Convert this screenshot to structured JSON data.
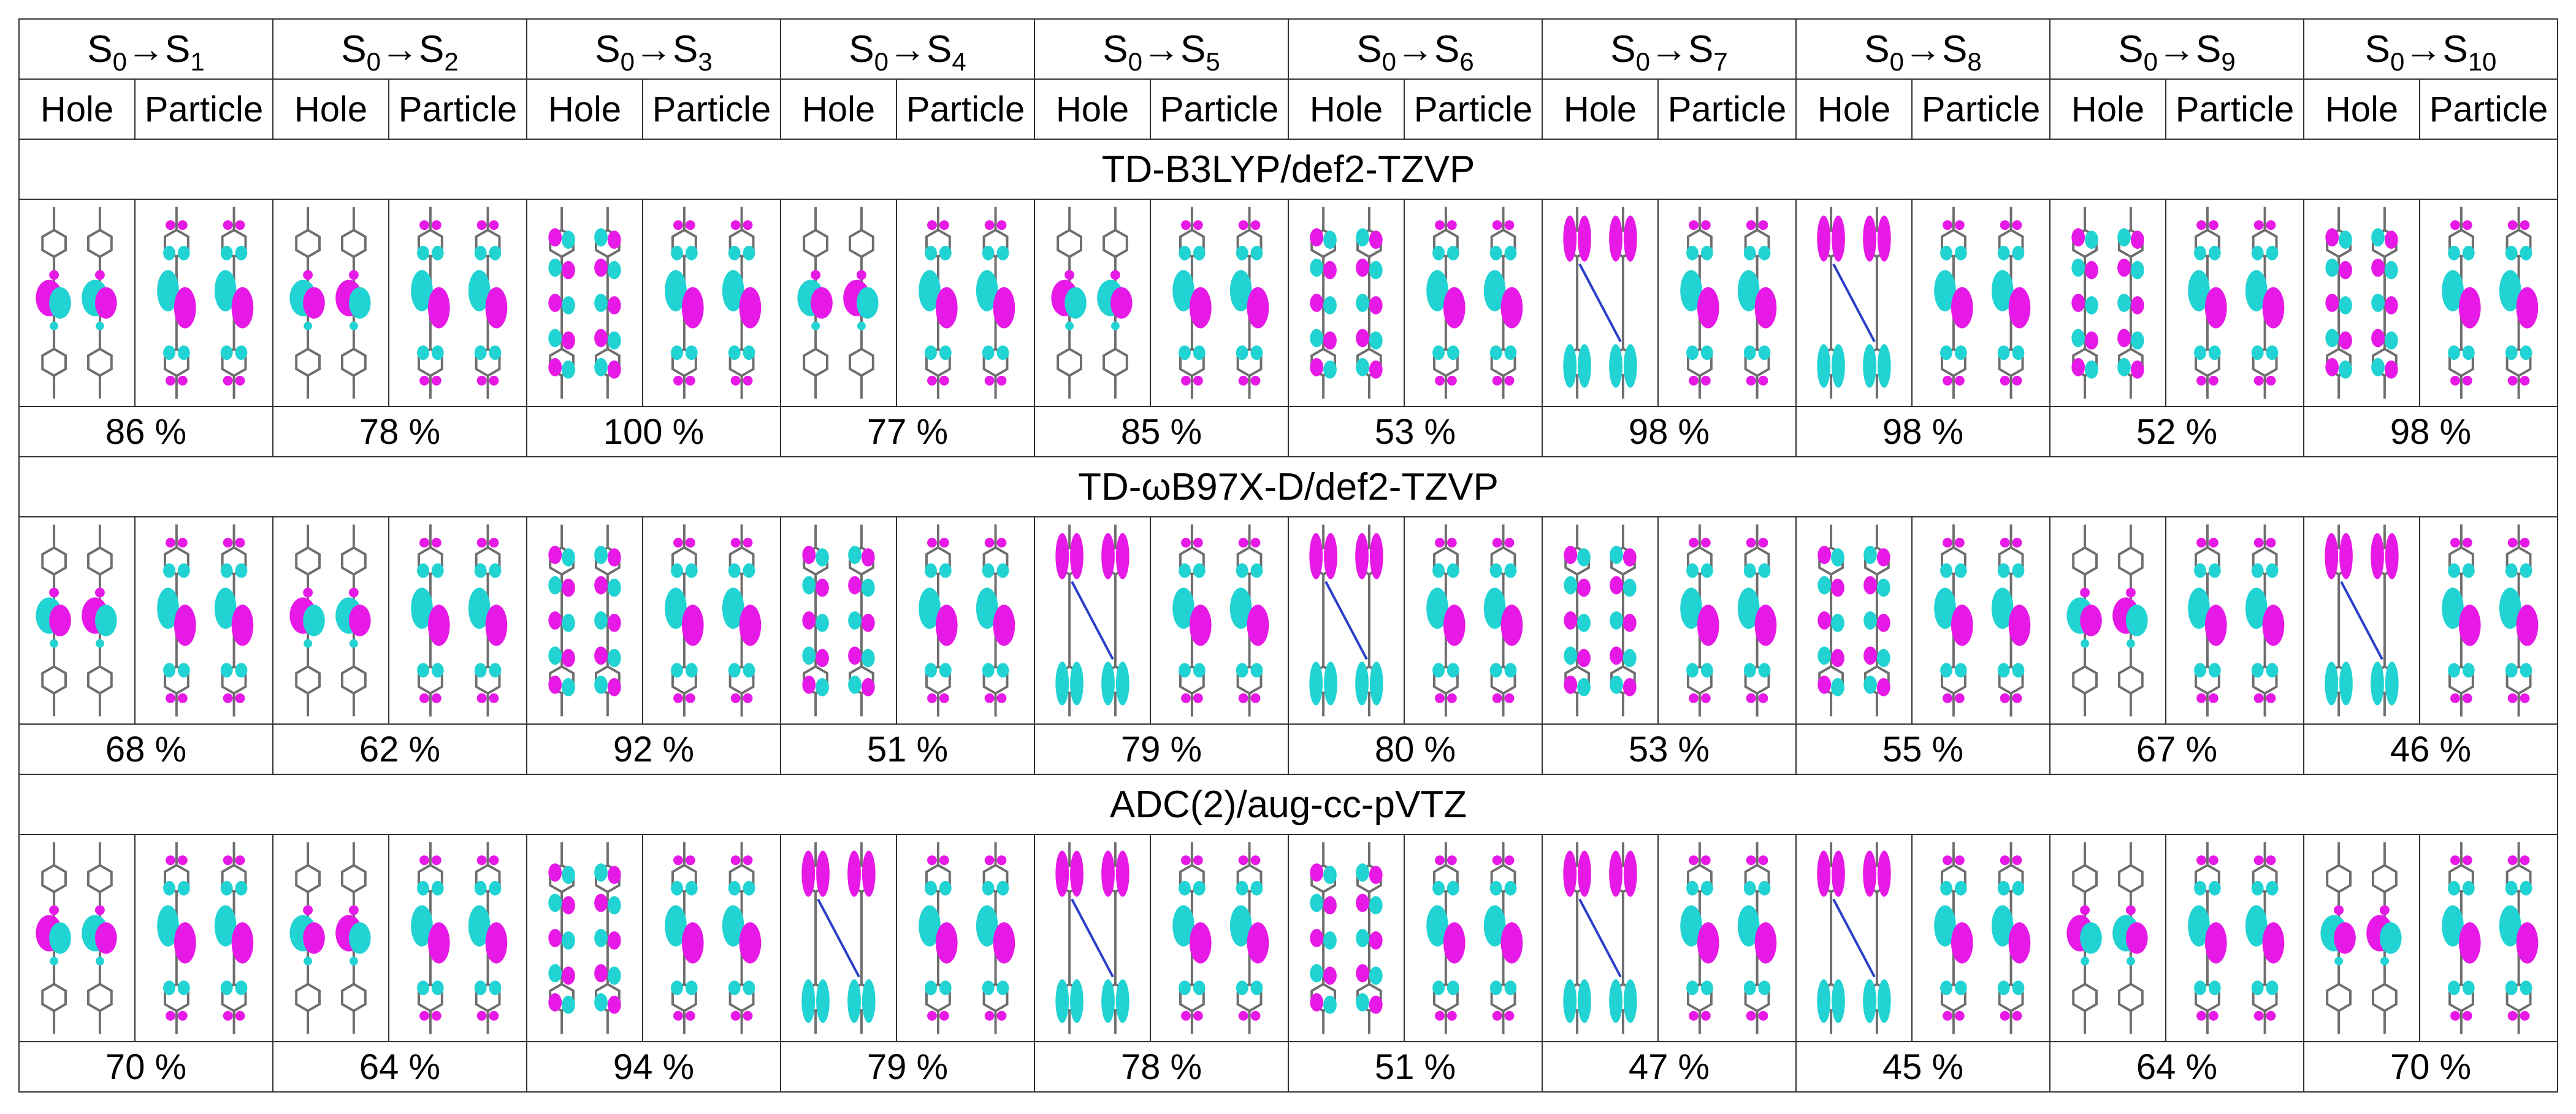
{
  "columns": [
    {
      "from": "S",
      "from_sub": "0",
      "arrow": "→",
      "to": "S",
      "to_sub": "1"
    },
    {
      "from": "S",
      "from_sub": "0",
      "arrow": "→",
      "to": "S",
      "to_sub": "2"
    },
    {
      "from": "S",
      "from_sub": "0",
      "arrow": "→",
      "to": "S",
      "to_sub": "3"
    },
    {
      "from": "S",
      "from_sub": "0",
      "arrow": "→",
      "to": "S",
      "to_sub": "4"
    },
    {
      "from": "S",
      "from_sub": "0",
      "arrow": "→",
      "to": "S",
      "to_sub": "5"
    },
    {
      "from": "S",
      "from_sub": "0",
      "arrow": "→",
      "to": "S",
      "to_sub": "6"
    },
    {
      "from": "S",
      "from_sub": "0",
      "arrow": "→",
      "to": "S",
      "to_sub": "7"
    },
    {
      "from": "S",
      "from_sub": "0",
      "arrow": "→",
      "to": "S",
      "to_sub": "8"
    },
    {
      "from": "S",
      "from_sub": "0",
      "arrow": "→",
      "to": "S",
      "to_sub": "9"
    },
    {
      "from": "S",
      "from_sub": "0",
      "arrow": "→",
      "to": "S",
      "to_sub": "10"
    }
  ],
  "sublabels": {
    "hole": "Hole",
    "particle": "Particle"
  },
  "methods": [
    {
      "name": "TD-B3LYP/def2-TZVP",
      "percent": [
        "86 %",
        "78 %",
        "100 %",
        "77 %",
        "85 %",
        "53 %",
        "98 %",
        "98 %",
        "52 %",
        "98 %"
      ],
      "holes": [
        "center",
        "center",
        "spread",
        "center",
        "center",
        "spread",
        "ends",
        "ends",
        "spread",
        "spread"
      ]
    },
    {
      "name": "TD-ωB97X-D/def2-TZVP",
      "percent": [
        "68 %",
        "62 %",
        "92 %",
        "51 %",
        "79 %",
        "80 %",
        "53 %",
        "55 %",
        "67 %",
        "46 %"
      ],
      "holes": [
        "center",
        "center",
        "spread",
        "spread",
        "ends",
        "ends",
        "spread",
        "spread",
        "center",
        "ends"
      ]
    },
    {
      "name": "ADC(2)/aug-cc-pVTZ",
      "percent": [
        "70 %",
        "64 %",
        "94 %",
        "79 %",
        "78 %",
        "51 %",
        "47 %",
        "45 %",
        "64 %",
        "70 %"
      ],
      "holes": [
        "center",
        "center",
        "spread",
        "ends",
        "ends",
        "spread",
        "ends",
        "ends",
        "center",
        "center"
      ]
    }
  ],
  "colors": {
    "magenta": "#e619e6",
    "cyan": "#22d3d3",
    "bond": "#6e6e6e",
    "nitrogen": "#2a3fc8",
    "border": "#333333"
  }
}
